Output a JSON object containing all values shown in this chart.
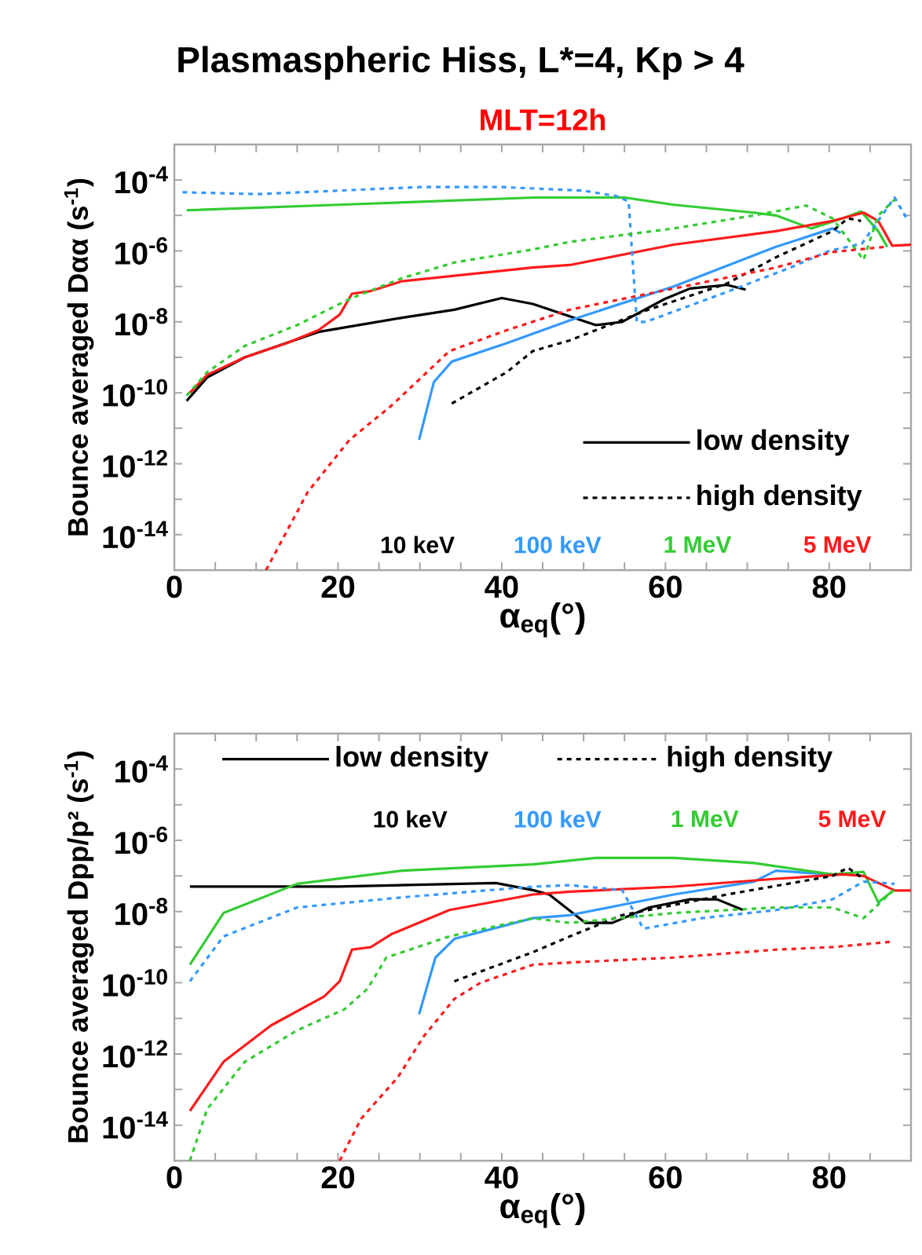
{
  "chart_data": [
    {
      "type": "line",
      "title": "Plasmaspheric Hiss, L*=4, Kp > 4",
      "subtitle": "MLT=12h",
      "xlabel": "α$_{eq}$(°)",
      "ylabel": "Bounce averaged Dαα (s$^{-1}$)",
      "log": "y",
      "legend": "bottom right",
      "annotations": [
        "low density",
        "high density"
      ],
      "xlim": [
        0,
        90
      ],
      "ylim": [
        1e-15,
        0.001
      ],
      "xticks": [
        0,
        {
          "value": 5,
          "label": null
        },
        {
          "value": 10,
          "label": null
        },
        {
          "value": 15,
          "label": null
        },
        20,
        {
          "value": 25,
          "label": null
        },
        {
          "value": 30,
          "label": null
        },
        {
          "value": 35,
          "label": null
        },
        40,
        {
          "value": 45,
          "label": null
        },
        {
          "value": 50,
          "label": null
        },
        {
          "value": 55,
          "label": null
        },
        60,
        {
          "value": 65,
          "label": null
        },
        {
          "value": 70,
          "label": null
        },
        {
          "value": 75,
          "label": null
        },
        80,
        {
          "value": 85,
          "label": null
        }
      ],
      "yticks": [
        {
          "value": 1e-14,
          "label": "10$^{-14}$"
        },
        {
          "value": 1e-13,
          "label": null
        },
        {
          "value": 1e-12,
          "label": "10$^{-12}$"
        },
        {
          "value": 1e-11,
          "label": null
        },
        {
          "value": 1e-10,
          "label": "10$^{-10}$"
        },
        {
          "value": 1e-09,
          "label": null
        },
        {
          "value": 1e-08,
          "label": "10$^{-8}$"
        },
        {
          "value": 1e-07,
          "label": null
        },
        {
          "value": 1e-06,
          "label": "10$^{-6}$"
        },
        {
          "value": 1e-05,
          "label": null
        },
        {
          "value": 0.0001,
          "label": "10$^{-4}$"
        }
      ],
      "series": [
        {
          "name": "10 keV",
          "color": "#000000",
          "line_style": "solid",
          "x": [
            1.5,
            4,
            8.6,
            17.6,
            27.8,
            34.2,
            40,
            43.8,
            51.5,
            54.7,
            59.9,
            63,
            67.5,
            69.8
          ],
          "values": [
            5.9e-11,
            2.7e-10,
            1e-09,
            5.2e-09,
            1.3e-08,
            2.2e-08,
            4.7e-08,
            3.2e-08,
            8.1e-09,
            1e-08,
            4.4e-08,
            8.7e-08,
            1.1e-07,
            8.1e-08
          ]
        },
        {
          "name": "100 keV",
          "color": "#3399ff",
          "line_style": "solid",
          "x": [
            29.9,
            31.7,
            33.9,
            40.6,
            48.3,
            61,
            73.5,
            80.4,
            81.4
          ],
          "values": [
            4.7e-12,
            2e-10,
            7.6e-10,
            2.5e-09,
            1.1e-08,
            1e-07,
            1.3e-06,
            4.3e-06,
            3.2e-06
          ]
        },
        {
          "name": "1 MeV",
          "color": "#33cc33",
          "line_style": "solid",
          "x": [
            1.5,
            20,
            44,
            55,
            61,
            70.8,
            73.5,
            77.8,
            81.7,
            83.9,
            86,
            87.1
          ],
          "values": [
            1.4e-05,
            2e-05,
            3.2e-05,
            3.2e-05,
            2e-05,
            1.2e-05,
            1e-05,
            4.3e-06,
            8.3e-06,
            1.3e-05,
            3.6e-06,
            1.3e-06
          ]
        },
        {
          "name": "5 MeV",
          "color": "#ff1a1a",
          "line_style": "solid",
          "x": [
            1.9,
            4,
            8.6,
            13.7,
            17.6,
            20.2,
            21.7,
            24,
            27.8,
            43.8,
            48.3,
            61,
            73.5,
            80.4,
            84.2,
            86,
            87.7,
            90
          ],
          "values": [
            1e-10,
            3.2e-10,
            1e-09,
            2.5e-09,
            5.8e-09,
            1.6e-08,
            6.2e-08,
            7.4e-08,
            1.4e-07,
            3.4e-07,
            4e-07,
            1.5e-06,
            3.6e-06,
            7e-06,
            1.2e-05,
            7e-06,
            1.4e-06,
            1.5e-06
          ]
        },
        {
          "color": "#000000",
          "line_style": "dashed",
          "x": [
            33.9,
            40.6,
            43.8,
            48.3,
            57.9,
            67.5,
            73.5,
            80.4,
            82.3,
            83.9
          ],
          "values": [
            5e-11,
            3.8e-10,
            1.5e-09,
            3e-09,
            2.2e-08,
            1.2e-07,
            6.6e-07,
            3.6e-06,
            8.3e-06,
            7e-06
          ]
        },
        {
          "color": "#3399ff",
          "line_style": "dashed",
          "x": [
            1,
            10,
            20,
            30,
            40,
            50,
            54,
            55.5,
            56.5,
            57.6,
            67,
            75,
            80,
            84,
            88,
            89.5
          ],
          "values": [
            4.5e-05,
            4e-05,
            5e-05,
            6.3e-05,
            6.3e-05,
            5e-05,
            3.5e-05,
            2.5e-05,
            1e-08,
            1e-08,
            6.3e-08,
            3.2e-07,
            1e-06,
            1.6e-06,
            3.2e-05,
            8e-06
          ]
        },
        {
          "color": "#33cc33",
          "line_style": "dashed",
          "x": [
            1.5,
            4,
            8.6,
            15,
            21.4,
            27.8,
            34.2,
            43.8,
            48.3,
            61,
            70.8,
            77.2,
            80.4,
            84.2,
            86,
            88
          ],
          "values": [
            8.3e-11,
            3.8e-10,
            2.1e-09,
            8.1e-09,
            4.4e-08,
            1.7e-07,
            4.7e-07,
            1.1e-06,
            1.8e-06,
            4.3e-06,
            1e-05,
            1.9e-05,
            8.3e-06,
            5.6e-07,
            1e-05,
            2.8e-05
          ]
        },
        {
          "color": "#ff1a1a",
          "line_style": "dashed",
          "x": [
            11.2,
            16.3,
            21.4,
            26.5,
            33.6,
            40.6,
            48.3,
            61,
            73.5,
            80.4,
            86.8
          ],
          "values": [
            1e-15,
            1.6e-13,
            4.7e-12,
            4.3e-11,
            1.5e-09,
            5.8e-09,
            2.2e-08,
            8.7e-08,
            3.4e-07,
            9.3e-07,
            1.3e-06
          ]
        }
      ]
    },
    {
      "type": "line",
      "xlabel": "α$_{eq}$(°)",
      "ylabel": "Bounce averaged Dpp/p² (s$^{-1}$)",
      "log": "y",
      "legend": "top",
      "annotations": [
        "low density",
        "high density"
      ],
      "xlim": [
        0,
        90
      ],
      "ylim": [
        1e-15,
        0.001
      ],
      "xticks": [
        0,
        {
          "value": 5,
          "label": null
        },
        {
          "value": 10,
          "label": null
        },
        {
          "value": 15,
          "label": null
        },
        20,
        {
          "value": 25,
          "label": null
        },
        {
          "value": 30,
          "label": null
        },
        {
          "value": 35,
          "label": null
        },
        40,
        {
          "value": 45,
          "label": null
        },
        {
          "value": 50,
          "label": null
        },
        {
          "value": 55,
          "label": null
        },
        60,
        {
          "value": 65,
          "label": null
        },
        {
          "value": 70,
          "label": null
        },
        {
          "value": 75,
          "label": null
        },
        80,
        {
          "value": 85,
          "label": null
        }
      ],
      "yticks": [
        {
          "value": 1e-14,
          "label": "10$^{-14}$"
        },
        {
          "value": 1e-13,
          "label": null
        },
        {
          "value": 1e-12,
          "label": "10$^{-12}$"
        },
        {
          "value": 1e-11,
          "label": null
        },
        {
          "value": 1e-10,
          "label": "10$^{-10}$"
        },
        {
          "value": 1e-09,
          "label": null
        },
        {
          "value": 1e-08,
          "label": "10$^{-8}$"
        },
        {
          "value": 1e-07,
          "label": null
        },
        {
          "value": 1e-06,
          "label": "10$^{-6}$"
        },
        {
          "value": 1e-05,
          "label": null
        },
        {
          "value": 0.0001,
          "label": "10$^{-4}$"
        }
      ],
      "series": [
        {
          "name": "10 keV",
          "color": "#000000",
          "line_style": "solid",
          "x": [
            1.9,
            20,
            39.3,
            43.8,
            45.8,
            50.2,
            53.5,
            58,
            63,
            66.3,
            69.5
          ],
          "values": [
            5e-08,
            5e-08,
            6.3e-08,
            4e-08,
            3e-08,
            4.8e-09,
            4.8e-09,
            1.3e-08,
            2.2e-08,
            2.2e-08,
            1.1e-08
          ]
        },
        {
          "name": "100 keV",
          "color": "#3399ff",
          "line_style": "solid",
          "x": [
            29.9,
            31.9,
            34.2,
            43.8,
            48.3,
            61,
            70.8,
            73.5,
            80.4
          ],
          "values": [
            1.3e-11,
            5.1e-10,
            1.7e-09,
            6.5e-09,
            7.9e-09,
            3e-08,
            6.9e-08,
            1.4e-07,
            1.1e-07
          ]
        },
        {
          "name": "1 MeV",
          "color": "#33cc33",
          "line_style": "solid",
          "x": [
            1.9,
            6,
            15,
            27.8,
            43.8,
            51.5,
            61,
            70.8,
            80.4,
            84.2,
            86,
            88
          ],
          "values": [
            3.2e-10,
            9.1e-09,
            6e-08,
            1.4e-07,
            2.1e-07,
            3.2e-07,
            3.2e-07,
            2.3e-07,
            1.1e-07,
            1.3e-07,
            1.8e-08,
            4.2e-08
          ]
        },
        {
          "name": "5 MeV",
          "color": "#ff1a1a",
          "line_style": "solid",
          "x": [
            1.9,
            6,
            11.8,
            18.3,
            20.2,
            21.7,
            24,
            26.5,
            33.6,
            43.8,
            48.3,
            61,
            73.5,
            81.7,
            84.2,
            88,
            90
          ],
          "values": [
            2.5e-14,
            6e-13,
            6.3e-12,
            4.1e-11,
            1.1e-10,
            8.5e-10,
            1e-09,
            2.3e-09,
            1.1e-08,
            3e-08,
            3.6e-08,
            5e-08,
            8.3e-08,
            1.1e-07,
            1e-07,
            3.9e-08,
            3.9e-08
          ]
        },
        {
          "color": "#000000",
          "line_style": "dashed",
          "x": [
            34.2,
            43.8,
            48.3,
            54.7,
            67.5,
            80.4,
            82.3,
            84.2
          ],
          "values": [
            1.1e-10,
            7.2e-10,
            2e-09,
            7.9e-09,
            3e-08,
            1e-07,
            1.7e-07,
            8.3e-08
          ]
        },
        {
          "color": "#3399ff",
          "line_style": "dashed",
          "x": [
            1.9,
            6,
            15,
            27.8,
            43.8,
            48.3,
            54.7,
            57.3,
            64.4,
            73.5,
            80.4,
            84.2,
            88
          ],
          "values": [
            1.1e-10,
            2e-09,
            1.3e-08,
            2.5e-08,
            5e-08,
            5.5e-08,
            4e-08,
            3.3e-09,
            6.5e-09,
            1.1e-08,
            2.2e-08,
            6.9e-08,
            6e-08
          ]
        },
        {
          "color": "#33cc33",
          "line_style": "dashed",
          "x": [
            1.9,
            4,
            8.6,
            15,
            20.8,
            23.6,
            25.9,
            33.6,
            43.8,
            48.3,
            61,
            73.5,
            80.4,
            84.2,
            88
          ],
          "values": [
            1e-15,
            2.8e-14,
            6e-13,
            4.6e-12,
            1.8e-11,
            6.8e-11,
            5.1e-10,
            2e-09,
            6.5e-09,
            4.8e-09,
            9.1e-09,
            1.3e-08,
            1.3e-08,
            6.5e-09,
            4.2e-08
          ]
        },
        {
          "color": "#ff1a1a",
          "line_style": "dashed",
          "x": [
            20.2,
            22.8,
            27.3,
            30.5,
            34.2,
            37.4,
            43.8,
            48.3,
            61,
            73.5,
            80.4,
            87.4
          ],
          "values": [
            1e-15,
            1.5e-14,
            2.2e-13,
            3.2e-12,
            3.5e-11,
            1e-10,
            3.2e-10,
            3.7e-10,
            5.1e-10,
            8.5e-10,
            1e-09,
            1.4e-09
          ]
        }
      ]
    }
  ]
}
